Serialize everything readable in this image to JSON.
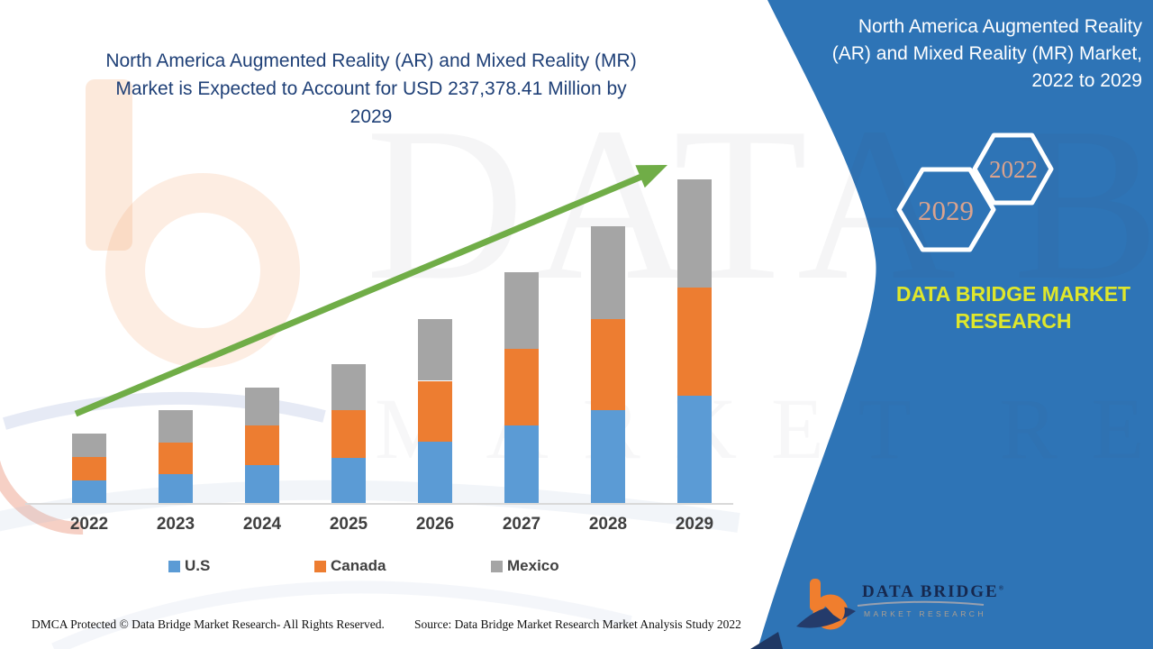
{
  "header": {
    "left_title_lines": [
      "North America Augmented Reality (AR) and Mixed Reality (MR)",
      "Market is Expected to Account for USD 237,378.41 Million by",
      "2029"
    ]
  },
  "right_panel": {
    "title_lines": [
      "North America Augmented Reality",
      "(AR) and Mixed Reality (MR) Market,",
      "2022 to 2029"
    ],
    "hexagons": [
      {
        "label": "2029"
      },
      {
        "label": "2022"
      }
    ],
    "brand_lines": [
      "DATA BRIDGE MARKET",
      "RESEARCH"
    ],
    "panel_color": "#2E74B6",
    "hexagon_text_color": "#DBA38D",
    "brand_text_color": "#DFE72B"
  },
  "chart_data": {
    "type": "bar",
    "stacked": true,
    "title": "North America Augmented Reality (AR) and Mixed Reality (MR) Market is Expected to Account for USD 237,378.41 Million by 2029",
    "units": "USD Million",
    "categories": [
      "2022",
      "2023",
      "2024",
      "2025",
      "2026",
      "2027",
      "2028",
      "2029"
    ],
    "series": [
      {
        "name": "U.S",
        "color": "#5B9BD5",
        "values": [
          16500,
          21100,
          27700,
          33000,
          44800,
          56700,
          67900,
          78500
        ]
      },
      {
        "name": "Canada",
        "color": "#ED7D31",
        "values": [
          17100,
          23100,
          29000,
          35000,
          44800,
          56700,
          67300,
          79800
        ]
      },
      {
        "name": "Mexico",
        "color": "#A5A5A5",
        "values": [
          17100,
          23700,
          27700,
          33600,
          45500,
          56000,
          67900,
          79100
        ]
      }
    ],
    "ylim": [
      0,
      250000
    ],
    "grid": false,
    "legend_position": "bottom",
    "trend_annotation": "upward-arrow",
    "trend_color": "#70AD47"
  },
  "watermark": {
    "line1": "DATA BRIDGE",
    "line2": "MARKET RESEARCH"
  },
  "footer": {
    "dmca": "DMCA Protected © Data Bridge Market Research- All Rights Reserved.",
    "source": "Source: Data Bridge Market Research Market Analysis Study 2022"
  },
  "logo": {
    "brand": "DATA BRIDGE",
    "registered": "®",
    "subtitle": "MARKET RESEARCH"
  }
}
